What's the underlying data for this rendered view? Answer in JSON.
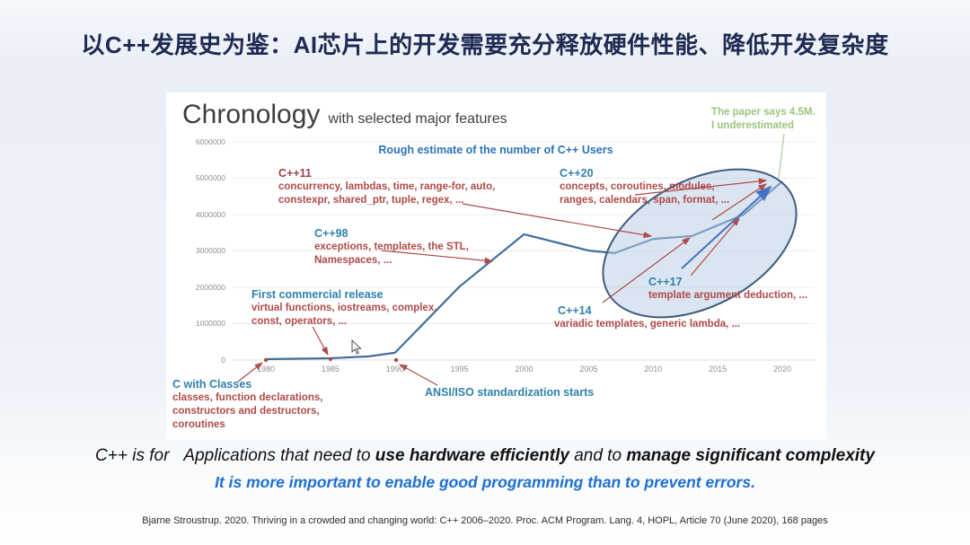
{
  "slide": {
    "title": "以C++发展史为鉴：AI芯片上的开发需要充分释放硬件性能、降低开发复杂度"
  },
  "chart": {
    "title": "Chronology",
    "title_suffix": "with selected major features",
    "subtitle": "Rough estimate of the number of C++ Users",
    "note_line1": "The paper says 4.5M.",
    "note_line2": "I underestimated",
    "annotations": {
      "cwc": {
        "label": "C with Classes",
        "line1": "classes, function declarations,",
        "line2": "constructors and destructors,",
        "line3": "coroutines"
      },
      "first": {
        "label": "First commercial release",
        "line1": "virtual functions, iostreams, complex,",
        "line2": "const, operators, ..."
      },
      "ansi": {
        "label": "ANSI/ISO standardization starts"
      },
      "cpp98": {
        "label": "C++98",
        "line1": "exceptions, templates, the STL,",
        "line2": "Namespaces, ..."
      },
      "cpp11": {
        "label": "C++11",
        "line1": "concurrency, lambdas, time, range-for, auto,",
        "line2": "constexpr, shared_ptr, tuple, regex, ..."
      },
      "cpp14": {
        "label": "C++14",
        "line1": "variadic templates, generic lambda, ..."
      },
      "cpp17": {
        "label": "C++17",
        "line1": "template argument deduction, ..."
      },
      "cpp20": {
        "label": "C++20",
        "line1": "concepts, coroutines, modules,",
        "line2": "ranges, calendars, span, format, ..."
      }
    }
  },
  "chart_data": {
    "type": "line",
    "title": "Chronology with selected major features",
    "subtitle": "Rough estimate of the number of C++ Users",
    "x": [
      1980,
      1985,
      1988,
      1990,
      1995,
      2000,
      2005,
      2007,
      2010,
      2013,
      2017,
      2020
    ],
    "y": [
      25000,
      50000,
      100000,
      200000,
      2020000,
      3460000,
      3010000,
      2940000,
      3330000,
      3410000,
      4000000,
      4910000
    ],
    "x_ticks": [
      1980,
      1985,
      1990,
      1995,
      2000,
      2005,
      2010,
      2015,
      2020
    ],
    "y_ticks": [
      0,
      1000000,
      2000000,
      3000000,
      4000000,
      5000000,
      6000000
    ],
    "xlim": [
      1980,
      2020
    ],
    "ylim": [
      0,
      6000000
    ],
    "grid": true,
    "legend": "none",
    "line_color": "#41719c",
    "annotations": [
      {
        "label": "C with Classes",
        "x": 1980,
        "y": 0
      },
      {
        "label": "First commercial release",
        "x": 1985,
        "y": 0
      },
      {
        "label": "ANSI/ISO standardization starts",
        "x": 1990,
        "y": 0
      },
      {
        "label": "C++98",
        "x": 1998,
        "y": 2650000
      },
      {
        "label": "C++11",
        "x": 2010,
        "y": 3330000
      },
      {
        "label": "C++14",
        "x": 2013,
        "y": 3410000
      },
      {
        "label": "C++17",
        "x": 2017,
        "y": 4000000
      },
      {
        "label": "C++20",
        "x": 2020,
        "y": 4910000
      },
      {
        "label": "The paper says 4.5M. I underestimated",
        "x": 2020,
        "y": 4910000
      }
    ]
  },
  "footer": {
    "lead": "C++ is for",
    "seg1": "Applications that need to ",
    "seg2": "use hardware efficiently",
    "seg3": " and to ",
    "seg4": "manage significant complexity",
    "line2": "It is more important to enable good programming than to prevent errors.",
    "citation": "Bjarne Stroustrup. 2020. Thriving in a crowded and changing world: C++ 2006–2020. Proc. ACM Program. Lang. 4, HOPL, Article 70 (June 2020), 168 pages"
  },
  "colors": {
    "slide_title": "#1e2a52",
    "chart_line": "#41719c",
    "annotation_red": "#ae4a49",
    "annotation_blue": "#2e81ac",
    "note_green": "#9cc47e",
    "footer_blue": "#1d6fd1",
    "ellipse_fill": "#b8cce4",
    "ellipse_stroke": "#3e5c7e"
  }
}
